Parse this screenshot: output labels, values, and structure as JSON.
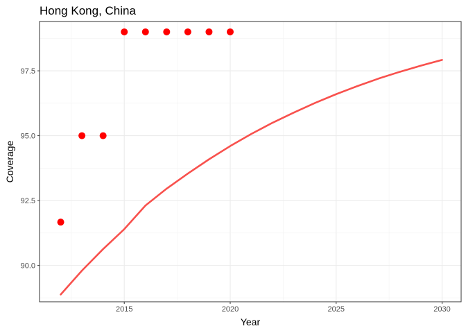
{
  "chart_data": {
    "type": "scatter",
    "title": "Hong Kong, China",
    "xlabel": "Year",
    "ylabel": "Coverage",
    "xlim": [
      2011.0,
      2030.9
    ],
    "ylim": [
      88.6,
      99.4
    ],
    "x_ticks": [
      2015,
      2020,
      2025,
      2030
    ],
    "x_tick_labels": [
      "2015",
      "2020",
      "2025",
      "2030"
    ],
    "y_ticks": [
      90.0,
      92.5,
      95.0,
      97.5
    ],
    "y_tick_labels": [
      "90.0",
      "92.5",
      "95.0",
      "97.5"
    ],
    "grid": true,
    "series": [
      {
        "kind": "points",
        "color": "#ff0000",
        "x": [
          2012,
          2013,
          2014,
          2015,
          2016,
          2017,
          2018,
          2019,
          2020
        ],
        "y": [
          91.67,
          95.0,
          95.0,
          99.0,
          99.0,
          99.0,
          99.0,
          99.0,
          99.0
        ]
      },
      {
        "kind": "line",
        "color": "#f8514d",
        "x": [
          2012,
          2013,
          2014,
          2015,
          2016,
          2017,
          2018,
          2019,
          2020,
          2021,
          2022,
          2023,
          2024,
          2025,
          2026,
          2027,
          2028,
          2029,
          2030
        ],
        "y": [
          88.88,
          89.8,
          90.63,
          91.4,
          92.31,
          92.96,
          93.54,
          94.09,
          94.6,
          95.07,
          95.5,
          95.89,
          96.26,
          96.6,
          96.91,
          97.2,
          97.46,
          97.7,
          97.92
        ]
      }
    ]
  }
}
